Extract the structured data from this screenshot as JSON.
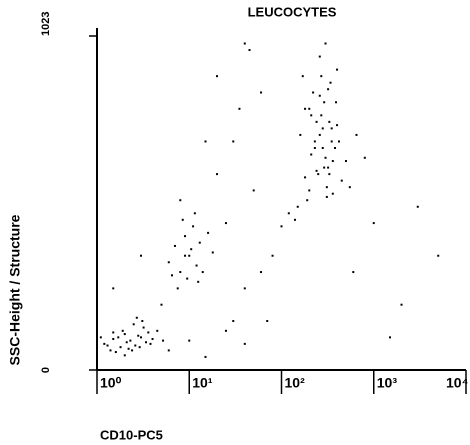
{
  "chart_data": {
    "type": "scatter",
    "title": "LEUCOCYTES",
    "xlabel": "CD10-PC5",
    "ylabel": "SSC-Height / Structure",
    "xscale": "log",
    "xlim": [
      1,
      10000
    ],
    "ylim": [
      0,
      1023
    ],
    "xticks": [
      {
        "value": 1,
        "label": "10⁰"
      },
      {
        "value": 10,
        "label": "10¹"
      },
      {
        "value": 100,
        "label": "10²"
      },
      {
        "value": 1000,
        "label": "10³"
      },
      {
        "value": 10000,
        "label": "10⁴"
      }
    ],
    "yticks": [
      0,
      1023
    ],
    "series": [
      {
        "color": "#000000",
        "x": [
          1.2,
          1.5,
          1.8,
          2.0,
          2.3,
          2.6,
          3.0,
          3.4,
          1.4,
          1.9,
          2.2,
          2.8,
          3.2,
          4.0,
          1.1,
          1.6,
          2.1,
          2.5,
          2.9,
          3.6,
          1.3,
          1.7,
          2.4,
          3.1,
          4.5,
          5.2,
          2.0,
          2.7,
          1.5,
          3.8,
          6,
          7,
          8,
          9,
          10,
          11,
          12,
          13,
          8.5,
          9.5,
          7.5,
          10.5,
          14,
          16,
          6.5,
          11.5,
          9,
          12.5,
          8,
          18,
          150,
          200,
          250,
          300,
          350,
          400,
          180,
          220,
          270,
          320,
          380,
          450,
          160,
          210,
          260,
          310,
          360,
          420,
          140,
          190,
          240,
          290,
          340,
          500,
          230,
          280,
          330,
          260,
          300,
          210,
          120,
          100,
          550,
          650,
          170,
          390,
          310,
          240,
          280,
          350,
          200,
          260,
          330,
          180,
          290,
          230,
          400,
          270,
          320,
          360,
          1.5,
          3,
          5,
          20,
          30,
          40,
          50,
          60,
          25,
          35,
          45,
          70,
          15,
          20,
          80,
          30,
          600,
          1000,
          2000,
          5000,
          800,
          1500,
          3000,
          40,
          60,
          6,
          10,
          15,
          25,
          40
        ],
        "y": [
          80,
          95,
          70,
          110,
          90,
          75,
          100,
          85,
          60,
          120,
          65,
          105,
          130,
          95,
          100,
          55,
          85,
          140,
          70,
          115,
          75,
          100,
          60,
          150,
          120,
          90,
          45,
          160,
          115,
          80,
          330,
          380,
          300,
          410,
          350,
          440,
          320,
          390,
          460,
          280,
          250,
          370,
          300,
          420,
          290,
          480,
          350,
          270,
          520,
          360,
          500,
          550,
          600,
          650,
          700,
          750,
          800,
          850,
          900,
          620,
          680,
          580,
          720,
          780,
          840,
          560,
          640,
          700,
          460,
          520,
          760,
          820,
          880,
          640,
          700,
          740,
          600,
          960,
          1000,
          660,
          480,
          440,
          560,
          720,
          900,
          820,
          530,
          610,
          680,
          740,
          800,
          720,
          760,
          590,
          620,
          680,
          920,
          780,
          860,
          540,
          250,
          350,
          200,
          600,
          700,
          250,
          550,
          300,
          450,
          800,
          980,
          150,
          700,
          900,
          350,
          150,
          300,
          450,
          200,
          350,
          650,
          100,
          500,
          1000,
          850,
          60,
          90,
          40,
          120,
          80
        ]
      }
    ]
  }
}
